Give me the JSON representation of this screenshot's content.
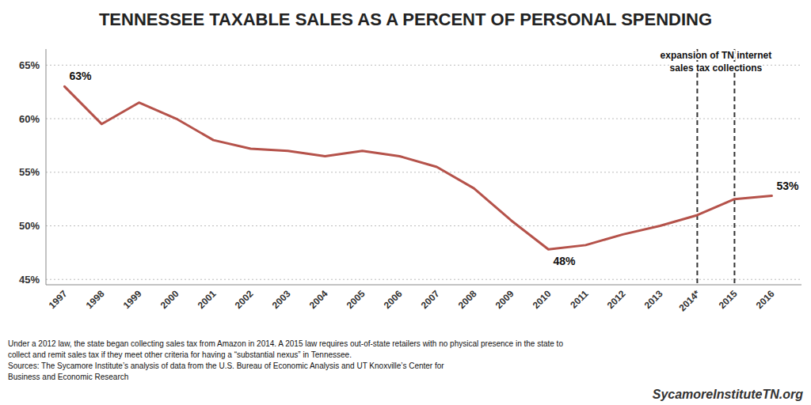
{
  "chart_data": {
    "type": "line",
    "title": "TENNESSEE TAXABLE SALES AS A PERCENT OF PERSONAL SPENDING",
    "categories": [
      "1997",
      "1998",
      "1999",
      "2000",
      "2001",
      "2002",
      "2003",
      "2004",
      "2005",
      "2006",
      "2007",
      "2008",
      "2009",
      "2010",
      "2011",
      "2012",
      "2013",
      "2014*",
      "2015",
      "2016"
    ],
    "values": [
      63.0,
      59.5,
      61.5,
      60.0,
      58.0,
      57.2,
      57.0,
      56.5,
      57.0,
      56.5,
      55.5,
      53.5,
      50.5,
      47.8,
      48.2,
      49.2,
      50.0,
      51.0,
      52.5,
      52.8
    ],
    "color": "#b5524a",
    "ylim": [
      44.5,
      66.5
    ],
    "yticks": [
      {
        "value": 45,
        "label": "45%"
      },
      {
        "value": 50,
        "label": "50%"
      },
      {
        "value": 55,
        "label": "55%"
      },
      {
        "value": 60,
        "label": "60%"
      },
      {
        "value": 65,
        "label": "65%"
      }
    ],
    "grid": true,
    "annotations": [
      {
        "text": "63%",
        "category": "1997"
      },
      {
        "text": "48%",
        "category": "2010"
      },
      {
        "text": "53%",
        "category": "2016"
      },
      {
        "text": "expansion of TN internet\nsales tax collections",
        "lines": [
          "2014*",
          "2015"
        ]
      }
    ],
    "footnote": "Under a 2012 law, the state began collecting sales tax from Amazon in 2014. A 2015 law requires out-of-state retailers with no physical presence in the state to\ncollect and remit sales tax if they meet other criteria for having a “substantial nexus” in Tennessee.\nSources: The Sycamore Institute’s analysis of data from the U.S. Bureau of Economic Analysis and UT Knoxville’s Center for\nBusiness and Economic Research",
    "brand": "SycamoreInstituteTN.org"
  }
}
